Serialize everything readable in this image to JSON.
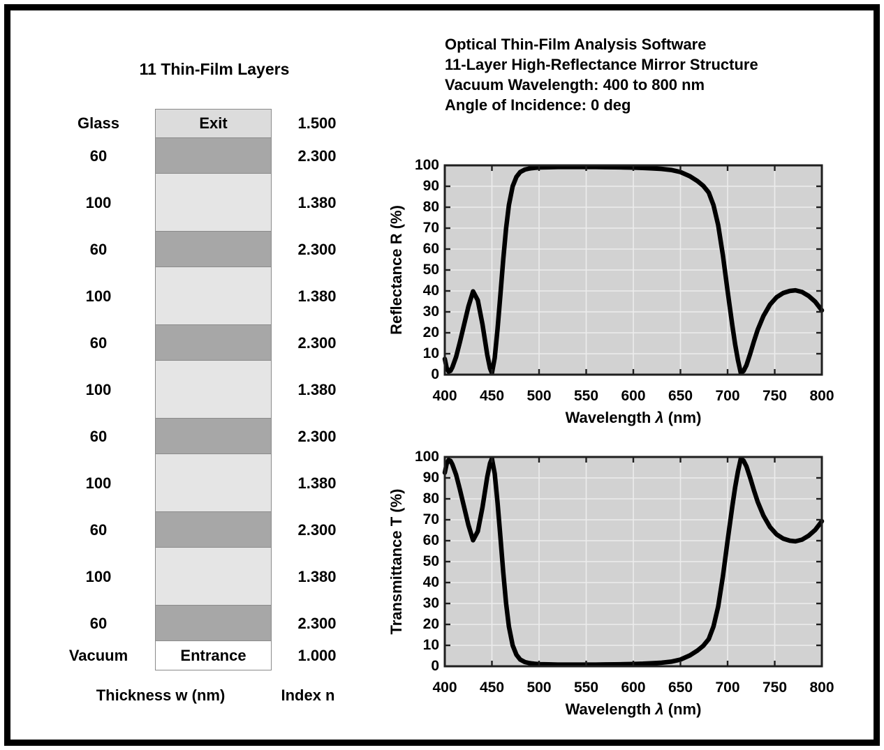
{
  "header": {
    "lines": [
      "Optical Thin-Film Analysis Software",
      "11-Layer High-Reflectance Mirror Structure",
      "Vacuum Wavelength: 400 to 800 nm",
      "Angle of Incidence: 0 deg"
    ]
  },
  "stack_panel": {
    "title": "11 Thin-Film Layers",
    "thickness_label": "Thickness w (nm)",
    "index_label": "Index n",
    "layers": [
      {
        "thickness_label": "Glass",
        "box_label": "Exit",
        "index": "1.500",
        "kind": "exit"
      },
      {
        "thickness_label": "60",
        "box_label": "",
        "index": "2.300",
        "kind": "high"
      },
      {
        "thickness_label": "100",
        "box_label": "",
        "index": "1.380",
        "kind": "low"
      },
      {
        "thickness_label": "60",
        "box_label": "",
        "index": "2.300",
        "kind": "high"
      },
      {
        "thickness_label": "100",
        "box_label": "",
        "index": "1.380",
        "kind": "low"
      },
      {
        "thickness_label": "60",
        "box_label": "",
        "index": "2.300",
        "kind": "high"
      },
      {
        "thickness_label": "100",
        "box_label": "",
        "index": "1.380",
        "kind": "low"
      },
      {
        "thickness_label": "60",
        "box_label": "",
        "index": "2.300",
        "kind": "high"
      },
      {
        "thickness_label": "100",
        "box_label": "",
        "index": "1.380",
        "kind": "low"
      },
      {
        "thickness_label": "60",
        "box_label": "",
        "index": "2.300",
        "kind": "high"
      },
      {
        "thickness_label": "100",
        "box_label": "",
        "index": "1.380",
        "kind": "low"
      },
      {
        "thickness_label": "60",
        "box_label": "",
        "index": "2.300",
        "kind": "high"
      },
      {
        "thickness_label": "Vacuum",
        "box_label": "Entrance",
        "index": "1.000",
        "kind": "entrance"
      }
    ]
  },
  "colors": {
    "layer_high": "#a7a7a7",
    "layer_low": "#e5e5e5",
    "layer_exit": "#dcdcdc",
    "layer_entrance": "#ffffff",
    "plot_bg": "#d2d2d2",
    "grid": "#ececec",
    "axis": "#1f1f1f",
    "curve": "#000000"
  },
  "chart_data": [
    {
      "type": "line",
      "name": "reflectance",
      "ylabel": "Reflectance R (%)",
      "xlabel_pre": "Wavelength ",
      "xlabel_symbol": "λ",
      "xlabel_post": " (nm)",
      "xlim": [
        400,
        800
      ],
      "ylim": [
        0,
        100
      ],
      "x_ticks": [
        400,
        450,
        500,
        550,
        600,
        650,
        700,
        750,
        800
      ],
      "y_ticks": [
        0,
        10,
        20,
        30,
        40,
        50,
        60,
        70,
        80,
        90,
        100
      ],
      "grid": true,
      "x": [
        400,
        402,
        404,
        406,
        408,
        412,
        416,
        420,
        425,
        430,
        435,
        440,
        445,
        448,
        450,
        453,
        456,
        459,
        462,
        465,
        468,
        472,
        476,
        480,
        485,
        490,
        495,
        500,
        510,
        520,
        530,
        540,
        550,
        560,
        570,
        580,
        590,
        600,
        610,
        620,
        630,
        640,
        650,
        660,
        668,
        674,
        680,
        685,
        690,
        695,
        700,
        705,
        708,
        711,
        714,
        717,
        720,
        724,
        728,
        732,
        738,
        745,
        752,
        759,
        766,
        772,
        779,
        786,
        793,
        800
      ],
      "y": [
        7.5,
        3.2,
        1.5,
        1.8,
        3.5,
        8.5,
        15.5,
        23,
        32.5,
        39.8,
        35.5,
        24,
        9.5,
        3,
        0.8,
        8,
        22,
        38,
        55,
        70,
        81,
        90,
        94.5,
        96.8,
        98,
        98.5,
        98.8,
        99,
        99.1,
        99.2,
        99.2,
        99.2,
        99.2,
        99.2,
        99.15,
        99.1,
        99,
        98.9,
        98.75,
        98.55,
        98.3,
        97.8,
        96.8,
        94.8,
        92.5,
        90.3,
        87,
        81,
        71.5,
        57,
        40,
        23.5,
        14.5,
        7,
        0.8,
        1.8,
        4.5,
        10,
        16,
        21.5,
        28,
        33.5,
        37,
        39,
        40,
        40.3,
        39.5,
        37.6,
        34.8,
        30.7
      ]
    },
    {
      "type": "line",
      "name": "transmittance",
      "ylabel": "Transmittance T (%)",
      "xlabel_pre": "Wavelength ",
      "xlabel_symbol": "λ",
      "xlabel_post": " (nm)",
      "xlim": [
        400,
        800
      ],
      "ylim": [
        0,
        100
      ],
      "x_ticks": [
        400,
        450,
        500,
        550,
        600,
        650,
        700,
        750,
        800
      ],
      "y_ticks": [
        0,
        10,
        20,
        30,
        40,
        50,
        60,
        70,
        80,
        90,
        100
      ],
      "grid": true,
      "x": [
        400,
        402,
        404,
        406,
        408,
        412,
        416,
        420,
        425,
        430,
        435,
        440,
        445,
        448,
        450,
        453,
        456,
        459,
        462,
        465,
        468,
        472,
        476,
        480,
        485,
        490,
        495,
        500,
        510,
        520,
        530,
        540,
        550,
        560,
        570,
        580,
        590,
        600,
        610,
        620,
        630,
        640,
        650,
        660,
        668,
        674,
        680,
        685,
        690,
        695,
        700,
        705,
        708,
        711,
        714,
        717,
        720,
        724,
        728,
        732,
        738,
        745,
        752,
        759,
        766,
        772,
        779,
        786,
        793,
        800
      ],
      "y": [
        92.5,
        96.8,
        98.5,
        98.2,
        96.5,
        91.5,
        84.5,
        77,
        67.5,
        60.2,
        64.5,
        76,
        90.5,
        97,
        99.2,
        92,
        78,
        62,
        45,
        30,
        19,
        10,
        5.5,
        3.2,
        2,
        1.5,
        1.2,
        1,
        0.9,
        0.8,
        0.8,
        0.8,
        0.8,
        0.8,
        0.85,
        0.9,
        1,
        1.1,
        1.25,
        1.45,
        1.7,
        2.2,
        3.2,
        5.2,
        7.5,
        9.7,
        13,
        19,
        28.5,
        43,
        60,
        76.5,
        85.5,
        93,
        99.2,
        98.2,
        95.5,
        90,
        84,
        78.5,
        72,
        66.5,
        63,
        61,
        60,
        59.7,
        60.5,
        62.4,
        65.2,
        69.3
      ]
    }
  ]
}
